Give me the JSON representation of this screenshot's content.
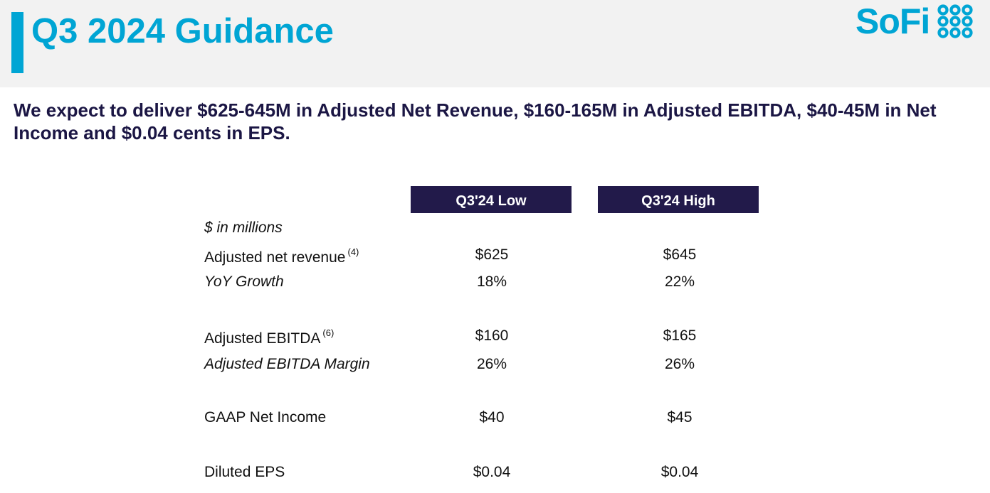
{
  "header": {
    "title": "Q3 2024 Guidance",
    "logo_text": "SoFi",
    "brand_color": "#00a5d4",
    "logo_mark_icon": "sofi-dots-logo-icon"
  },
  "summary": "We expect to deliver $625-645M in Adjusted Net Revenue, $160-165M in Adjusted EBITDA, $40-45M in Net Income and $0.04 cents in EPS.",
  "table": {
    "units_label": "$ in millions",
    "header_color": "#221a4a",
    "columns": [
      "Q3'24 Low",
      "Q3'24 High"
    ],
    "rows": [
      {
        "label": "Adjusted net revenue",
        "footnote": "(4)",
        "italic": false,
        "low": "$625",
        "high": "$645"
      },
      {
        "label": "YoY Growth",
        "footnote": "",
        "italic": true,
        "low": "18%",
        "high": "22%"
      },
      {
        "label": "Adjusted EBITDA",
        "footnote": "(6)",
        "italic": false,
        "low": "$160",
        "high": "$165"
      },
      {
        "label": "Adjusted EBITDA Margin",
        "footnote": "",
        "italic": true,
        "low": "26%",
        "high": "26%"
      },
      {
        "label": "GAAP Net Income",
        "footnote": "",
        "italic": false,
        "low": "$40",
        "high": "$45"
      },
      {
        "label": "Diluted EPS",
        "footnote": "",
        "italic": false,
        "low": "$0.04",
        "high": "$0.04"
      }
    ]
  }
}
